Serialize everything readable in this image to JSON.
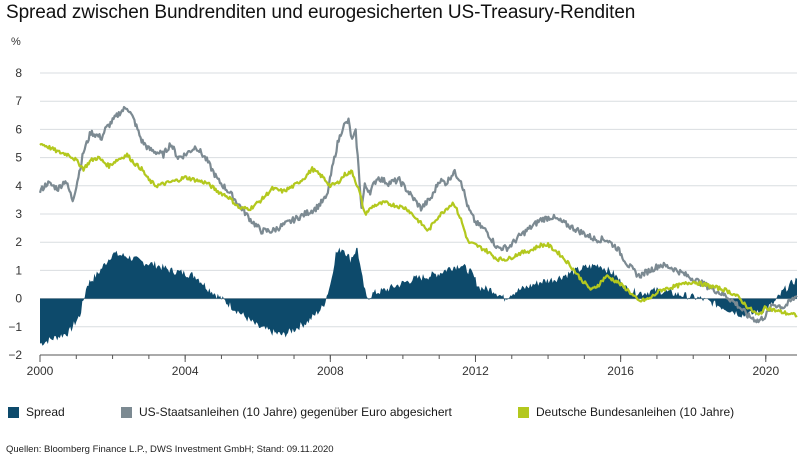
{
  "title": "Spread zwischen Bundrenditen und eurogesicherten US-Treasury-Renditen",
  "source": "Quellen: Bloomberg Finance L.P., DWS Investment GmbH; Stand: 09.11.2020",
  "colors": {
    "spread": "#0d4a6b",
    "us": "#7c8a92",
    "bund": "#b3c81e",
    "grid": "#d9dde0",
    "axis": "#555555"
  },
  "chart_data": {
    "type": "area",
    "title": "Spread zwischen Bundrenditen und eurogesicherten US-Treasury-Renditen",
    "ylabel": "%",
    "xlabel": "",
    "xlim": [
      2000,
      2020.86
    ],
    "ylim": [
      -2,
      8
    ],
    "y_ticks": [
      "−2",
      "−1",
      "0",
      "1",
      "2",
      "3",
      "4",
      "5",
      "6",
      "7",
      "8"
    ],
    "x_ticks": [
      {
        "value": 2000,
        "label": "2000"
      },
      {
        "value": 2004,
        "label": "2004"
      },
      {
        "value": 2008,
        "label": "2008"
      },
      {
        "value": 2012,
        "label": "2012"
      },
      {
        "value": 2016,
        "label": "2016"
      },
      {
        "value": 2020,
        "label": "2020"
      }
    ],
    "legend_position": "bottom",
    "series": [
      {
        "name": "Spread",
        "kind": "area",
        "points": [
          [
            2000.0,
            -1.6
          ],
          [
            2000.4,
            -1.4
          ],
          [
            2000.8,
            -1.2
          ],
          [
            2001.1,
            -0.6
          ],
          [
            2001.3,
            0.5
          ],
          [
            2001.6,
            0.9
          ],
          [
            2002.0,
            1.6
          ],
          [
            2002.4,
            1.5
          ],
          [
            2002.8,
            1.3
          ],
          [
            2003.2,
            1.2
          ],
          [
            2003.6,
            1.0
          ],
          [
            2004.0,
            0.9
          ],
          [
            2004.3,
            0.8
          ],
          [
            2004.6,
            0.4
          ],
          [
            2004.9,
            0.1
          ],
          [
            2005.2,
            -0.2
          ],
          [
            2005.6,
            -0.6
          ],
          [
            2006.0,
            -1.0
          ],
          [
            2006.4,
            -1.2
          ],
          [
            2006.7,
            -1.3
          ],
          [
            2007.0,
            -1.1
          ],
          [
            2007.4,
            -0.8
          ],
          [
            2007.8,
            -0.3
          ],
          [
            2008.0,
            0.5
          ],
          [
            2008.15,
            1.6
          ],
          [
            2008.35,
            1.8
          ],
          [
            2008.55,
            1.4
          ],
          [
            2008.75,
            1.8
          ],
          [
            2008.85,
            0.9
          ],
          [
            2009.0,
            0.0
          ],
          [
            2009.2,
            0.2
          ],
          [
            2009.5,
            0.3
          ],
          [
            2009.9,
            0.5
          ],
          [
            2010.3,
            0.7
          ],
          [
            2010.7,
            0.8
          ],
          [
            2011.0,
            0.9
          ],
          [
            2011.3,
            1.1
          ],
          [
            2011.6,
            1.2
          ],
          [
            2011.9,
            0.9
          ],
          [
            2012.1,
            0.4
          ],
          [
            2012.5,
            0.3
          ],
          [
            2012.8,
            0.0
          ],
          [
            2013.0,
            0.2
          ],
          [
            2013.4,
            0.4
          ],
          [
            2013.8,
            0.6
          ],
          [
            2014.2,
            0.7
          ],
          [
            2014.6,
            0.9
          ],
          [
            2015.0,
            1.1
          ],
          [
            2015.4,
            1.2
          ],
          [
            2015.8,
            0.9
          ],
          [
            2016.2,
            0.3
          ],
          [
            2016.6,
            0.2
          ],
          [
            2017.0,
            0.3
          ],
          [
            2017.4,
            0.2
          ],
          [
            2017.8,
            0.1
          ],
          [
            2018.2,
            0.0
          ],
          [
            2018.6,
            -0.2
          ],
          [
            2019.0,
            -0.4
          ],
          [
            2019.4,
            -0.6
          ],
          [
            2019.8,
            -0.5
          ],
          [
            2020.2,
            -0.2
          ],
          [
            2020.5,
            0.3
          ],
          [
            2020.86,
            0.7
          ]
        ]
      },
      {
        "name": "US-Staatsanleihen (10 Jahre) gegenüber Euro abgesichert",
        "kind": "line",
        "points": [
          [
            2000.0,
            3.8
          ],
          [
            2000.2,
            4.1
          ],
          [
            2000.5,
            3.9
          ],
          [
            2000.7,
            4.2
          ],
          [
            2000.9,
            3.5
          ],
          [
            2001.0,
            4.0
          ],
          [
            2001.2,
            5.2
          ],
          [
            2001.4,
            5.9
          ],
          [
            2001.7,
            5.7
          ],
          [
            2001.8,
            6.0
          ],
          [
            2002.0,
            6.3
          ],
          [
            2002.2,
            6.6
          ],
          [
            2002.4,
            6.8
          ],
          [
            2002.6,
            6.3
          ],
          [
            2002.8,
            5.6
          ],
          [
            2003.0,
            5.3
          ],
          [
            2003.2,
            5.2
          ],
          [
            2003.4,
            5.1
          ],
          [
            2003.6,
            5.5
          ],
          [
            2003.8,
            5.0
          ],
          [
            2004.0,
            5.1
          ],
          [
            2004.3,
            5.4
          ],
          [
            2004.6,
            4.9
          ],
          [
            2004.9,
            4.2
          ],
          [
            2005.2,
            3.8
          ],
          [
            2005.5,
            3.3
          ],
          [
            2005.8,
            2.8
          ],
          [
            2006.1,
            2.4
          ],
          [
            2006.4,
            2.4
          ],
          [
            2006.7,
            2.6
          ],
          [
            2007.0,
            2.8
          ],
          [
            2007.3,
            3.0
          ],
          [
            2007.6,
            3.2
          ],
          [
            2007.9,
            3.6
          ],
          [
            2008.05,
            4.6
          ],
          [
            2008.2,
            5.5
          ],
          [
            2008.35,
            6.1
          ],
          [
            2008.5,
            6.3
          ],
          [
            2008.6,
            5.6
          ],
          [
            2008.7,
            5.9
          ],
          [
            2008.78,
            4.6
          ],
          [
            2008.86,
            3.2
          ],
          [
            2008.95,
            4.0
          ],
          [
            2009.1,
            3.8
          ],
          [
            2009.3,
            4.3
          ],
          [
            2009.6,
            4.1
          ],
          [
            2009.9,
            4.2
          ],
          [
            2010.2,
            3.7
          ],
          [
            2010.5,
            3.2
          ],
          [
            2010.8,
            3.6
          ],
          [
            2011.0,
            4.2
          ],
          [
            2011.2,
            4.1
          ],
          [
            2011.4,
            4.5
          ],
          [
            2011.6,
            4.2
          ],
          [
            2011.8,
            3.2
          ],
          [
            2012.0,
            2.7
          ],
          [
            2012.3,
            2.4
          ],
          [
            2012.6,
            1.8
          ],
          [
            2012.9,
            1.8
          ],
          [
            2013.2,
            2.2
          ],
          [
            2013.5,
            2.5
          ],
          [
            2013.8,
            2.8
          ],
          [
            2014.1,
            2.9
          ],
          [
            2014.4,
            2.7
          ],
          [
            2014.7,
            2.5
          ],
          [
            2015.0,
            2.3
          ],
          [
            2015.3,
            2.1
          ],
          [
            2015.6,
            2.1
          ],
          [
            2015.9,
            1.8
          ],
          [
            2016.2,
            1.2
          ],
          [
            2016.5,
            0.8
          ],
          [
            2016.8,
            1.0
          ],
          [
            2017.1,
            1.2
          ],
          [
            2017.4,
            1.1
          ],
          [
            2017.7,
            0.9
          ],
          [
            2018.0,
            0.7
          ],
          [
            2018.3,
            0.5
          ],
          [
            2018.6,
            0.3
          ],
          [
            2018.9,
            0.1
          ],
          [
            2019.2,
            -0.2
          ],
          [
            2019.5,
            -0.6
          ],
          [
            2019.8,
            -0.8
          ],
          [
            2020.0,
            -0.6
          ],
          [
            2020.2,
            -0.2
          ],
          [
            2020.5,
            -0.3
          ],
          [
            2020.86,
            0.1
          ]
        ]
      },
      {
        "name": "Deutsche Bundesanleihen (10 Jahre)",
        "kind": "line",
        "points": [
          [
            2000.0,
            5.5
          ],
          [
            2000.2,
            5.4
          ],
          [
            2000.5,
            5.2
          ],
          [
            2000.8,
            5.1
          ],
          [
            2001.0,
            4.9
          ],
          [
            2001.2,
            4.6
          ],
          [
            2001.4,
            4.9
          ],
          [
            2001.6,
            5.0
          ],
          [
            2001.9,
            4.7
          ],
          [
            2002.1,
            4.9
          ],
          [
            2002.4,
            5.1
          ],
          [
            2002.6,
            4.8
          ],
          [
            2002.8,
            4.6
          ],
          [
            2003.0,
            4.2
          ],
          [
            2003.2,
            4.0
          ],
          [
            2003.5,
            4.1
          ],
          [
            2003.8,
            4.2
          ],
          [
            2004.0,
            4.3
          ],
          [
            2004.3,
            4.2
          ],
          [
            2004.6,
            4.1
          ],
          [
            2004.9,
            3.8
          ],
          [
            2005.2,
            3.6
          ],
          [
            2005.5,
            3.2
          ],
          [
            2005.8,
            3.2
          ],
          [
            2006.1,
            3.5
          ],
          [
            2006.4,
            3.9
          ],
          [
            2006.7,
            3.8
          ],
          [
            2007.0,
            4.0
          ],
          [
            2007.3,
            4.3
          ],
          [
            2007.5,
            4.6
          ],
          [
            2007.8,
            4.3
          ],
          [
            2008.0,
            4.0
          ],
          [
            2008.2,
            4.1
          ],
          [
            2008.4,
            4.4
          ],
          [
            2008.6,
            4.5
          ],
          [
            2008.8,
            3.8
          ],
          [
            2008.95,
            3.0
          ],
          [
            2009.2,
            3.3
          ],
          [
            2009.5,
            3.4
          ],
          [
            2009.8,
            3.3
          ],
          [
            2010.1,
            3.2
          ],
          [
            2010.4,
            2.8
          ],
          [
            2010.7,
            2.4
          ],
          [
            2010.9,
            2.8
          ],
          [
            2011.2,
            3.2
          ],
          [
            2011.4,
            3.4
          ],
          [
            2011.6,
            2.8
          ],
          [
            2011.8,
            2.0
          ],
          [
            2012.0,
            1.9
          ],
          [
            2012.3,
            1.7
          ],
          [
            2012.6,
            1.4
          ],
          [
            2012.9,
            1.4
          ],
          [
            2013.2,
            1.6
          ],
          [
            2013.5,
            1.7
          ],
          [
            2013.8,
            1.9
          ],
          [
            2014.0,
            1.9
          ],
          [
            2014.3,
            1.6
          ],
          [
            2014.6,
            1.2
          ],
          [
            2014.9,
            0.7
          ],
          [
            2015.2,
            0.3
          ],
          [
            2015.4,
            0.5
          ],
          [
            2015.6,
            0.8
          ],
          [
            2015.9,
            0.6
          ],
          [
            2016.2,
            0.3
          ],
          [
            2016.5,
            -0.1
          ],
          [
            2016.8,
            0.0
          ],
          [
            2017.1,
            0.3
          ],
          [
            2017.4,
            0.4
          ],
          [
            2017.7,
            0.5
          ],
          [
            2018.0,
            0.6
          ],
          [
            2018.3,
            0.5
          ],
          [
            2018.6,
            0.4
          ],
          [
            2018.9,
            0.3
          ],
          [
            2019.2,
            0.1
          ],
          [
            2019.5,
            -0.3
          ],
          [
            2019.8,
            -0.6
          ],
          [
            2020.0,
            -0.3
          ],
          [
            2020.2,
            -0.4
          ],
          [
            2020.5,
            -0.5
          ],
          [
            2020.86,
            -0.6
          ]
        ]
      }
    ]
  }
}
